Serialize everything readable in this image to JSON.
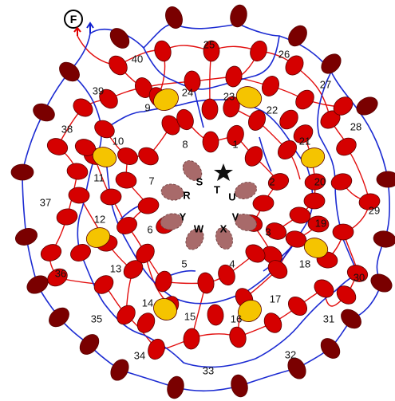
{
  "colors": {
    "red_node": "#d50000",
    "dark_node": "#7a0000",
    "yellow_node": "#f5c400",
    "inner_node": "#a86a6a",
    "red_path": "#e00000",
    "blue_path": "#1020d0",
    "star": "#111111"
  },
  "start_marker": {
    "label": "F",
    "icon": "start-circle-icon"
  },
  "center_marker": {
    "icon": "star-icon"
  },
  "region_numbers": [
    "1",
    "2",
    "3",
    "4",
    "5",
    "6",
    "7",
    "8",
    "9",
    "10",
    "11",
    "12",
    "13",
    "14",
    "15",
    "16",
    "17",
    "18",
    "19",
    "20",
    "21",
    "22",
    "23",
    "24",
    "25",
    "26",
    "27",
    "28",
    "29",
    "30",
    "31",
    "32",
    "33",
    "34",
    "35",
    "36",
    "37",
    "38",
    "39",
    "40"
  ],
  "inner_letters": [
    "S",
    "T",
    "U",
    "V",
    "X",
    "W",
    "Y",
    "R"
  ]
}
